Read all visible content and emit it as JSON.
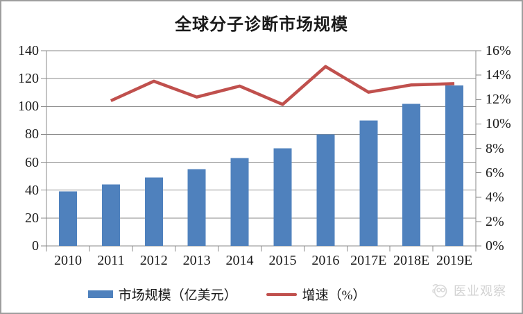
{
  "figure": {
    "watermark": {
      "text": "医业观察"
    }
  },
  "legend": {
    "bar_label": "市场规模（亿美元）",
    "line_label": "增速（%）"
  },
  "chart_data": {
    "type": "bar+line",
    "title": "全球分子诊断市场规模",
    "categories": [
      "2010",
      "2011",
      "2012",
      "2013",
      "2014",
      "2015",
      "2016",
      "2017E",
      "2018E",
      "2019E"
    ],
    "series": [
      {
        "name": "市场规模（亿美元）",
        "type": "bar",
        "axis": "left",
        "values": [
          39,
          44,
          49,
          55,
          63,
          70,
          80,
          90,
          102,
          115
        ]
      },
      {
        "name": "增速（%）",
        "type": "line",
        "axis": "right",
        "values": [
          null,
          11.9,
          13.5,
          12.2,
          13.1,
          11.6,
          14.7,
          12.6,
          13.2,
          13.3
        ]
      }
    ],
    "left_axis": {
      "label": "",
      "min": 0,
      "max": 140,
      "step": 20,
      "ticks": [
        "0",
        "20",
        "40",
        "60",
        "80",
        "100",
        "120",
        "140"
      ]
    },
    "right_axis": {
      "label": "",
      "min": 0,
      "max": 16,
      "step": 2,
      "ticks": [
        "0%",
        "2%",
        "4%",
        "6%",
        "8%",
        "10%",
        "12%",
        "14%",
        "16%"
      ]
    },
    "grid": "horizontal-left-axis",
    "legend_position": "bottom"
  },
  "colors": {
    "bar": "#4f81bd",
    "line": "#c0504d",
    "grid": "#8a8a8a",
    "axis": "#8a8a8a",
    "text": "#1a1a1a",
    "watermark": "#d2d2d2",
    "frame": "#9e9e9e",
    "background": "#ffffff"
  }
}
